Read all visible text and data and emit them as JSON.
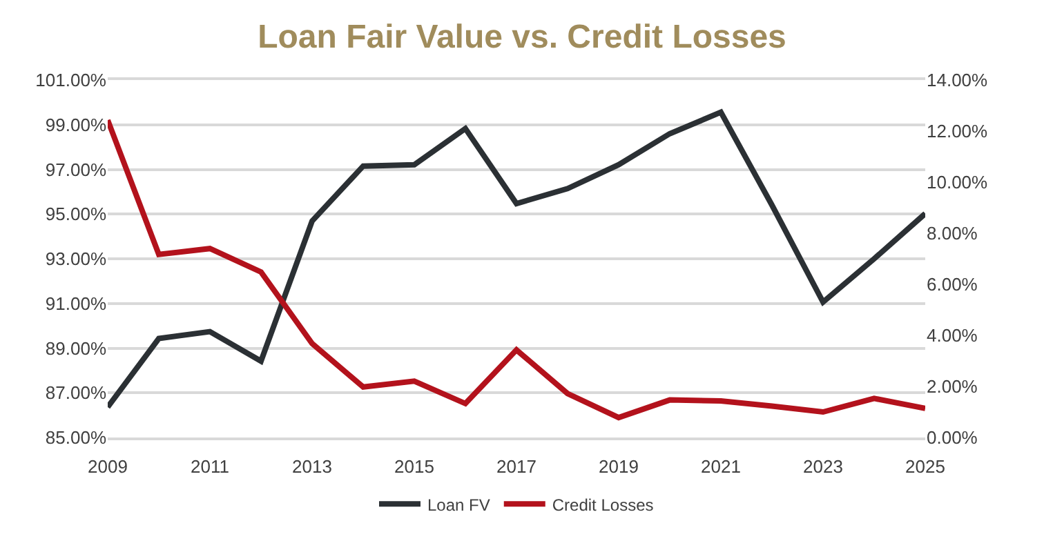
{
  "chart_data": {
    "type": "line",
    "title": "Loan Fair Value vs. Credit Losses",
    "x": [
      2009,
      2010,
      2011,
      2012,
      2013,
      2014,
      2015,
      2016,
      2017,
      2018,
      2019,
      2020,
      2021,
      2022,
      2023,
      2024,
      2025
    ],
    "series": [
      {
        "name": "Loan FV",
        "color": "#2b3034",
        "values": [
          86.36,
          89.43,
          89.74,
          88.42,
          94.69,
          97.15,
          97.21,
          98.83,
          95.47,
          96.14,
          97.21,
          98.6,
          99.56,
          95.4,
          91.06,
          93.0,
          95.02
        ]
      },
      {
        "name": "Credit Losses",
        "color": "#b3121c",
        "axis": "y2",
        "values": [
          12.43,
          7.17,
          7.4,
          6.48,
          3.68,
          1.98,
          2.21,
          1.33,
          3.43,
          1.72,
          0.78,
          1.47,
          1.43,
          1.23,
          1.0,
          1.53,
          1.14
        ]
      }
    ],
    "xlim": [
      2009,
      2025
    ],
    "xticks": [
      2009,
      2011,
      2013,
      2015,
      2017,
      2019,
      2021,
      2023,
      2025
    ],
    "ylim": [
      85,
      101
    ],
    "yticks": [
      {
        "value": 85,
        "label": "85.00%"
      },
      {
        "value": 87,
        "label": "87.00%"
      },
      {
        "value": 89,
        "label": "89.00%"
      },
      {
        "value": 91,
        "label": "91.00%"
      },
      {
        "value": 93,
        "label": "93.00%"
      },
      {
        "value": 95,
        "label": "95.00%"
      },
      {
        "value": 97,
        "label": "97.00%"
      },
      {
        "value": 99,
        "label": "99.00%"
      },
      {
        "value": 101,
        "label": "101.00%"
      }
    ],
    "y2lim": [
      0,
      14
    ],
    "y2ticks": [
      {
        "value": 0,
        "label": "0.00%"
      },
      {
        "value": 2,
        "label": "2.00%"
      },
      {
        "value": 4,
        "label": "4.00%"
      },
      {
        "value": 6,
        "label": "6.00%"
      },
      {
        "value": 8,
        "label": "8.00%"
      },
      {
        "value": 10,
        "label": "10.00%"
      },
      {
        "value": 12,
        "label": "12.00%"
      },
      {
        "value": 14,
        "label": "14.00%"
      }
    ],
    "grid": "y",
    "legend": "bottom",
    "marker": "none",
    "line_style": "solid"
  }
}
